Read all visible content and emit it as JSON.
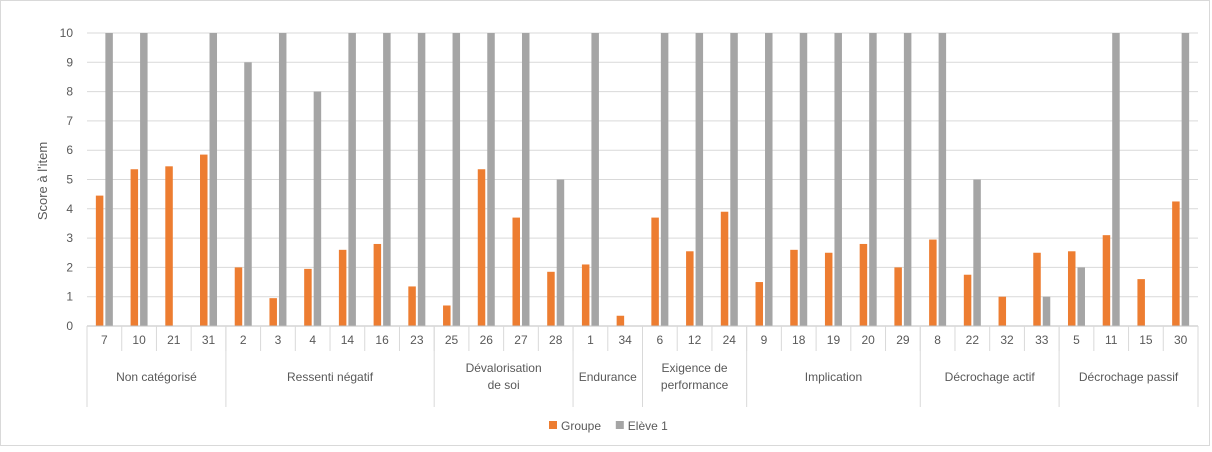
{
  "chart_data": {
    "type": "bar",
    "title": "",
    "xlabel": "",
    "ylabel": "Score à l'item",
    "ylim": [
      0,
      10
    ],
    "yticks": [
      0,
      1,
      2,
      3,
      4,
      5,
      6,
      7,
      8,
      9,
      10
    ],
    "grid": true,
    "legend_position": "bottom",
    "groups": [
      {
        "label": "Non catégorisé",
        "items": [
          "7",
          "10",
          "21",
          "31"
        ]
      },
      {
        "label": "Ressenti négatif",
        "items": [
          "2",
          "3",
          "4",
          "14",
          "16",
          "23"
        ]
      },
      {
        "label": "Dévalorisation de soi",
        "items": [
          "25",
          "26",
          "27",
          "28"
        ]
      },
      {
        "label": "Endurance",
        "items": [
          "1",
          "34"
        ]
      },
      {
        "label": "Exigence de performance",
        "items": [
          "6",
          "12",
          "24"
        ]
      },
      {
        "label": "Implication",
        "items": [
          "9",
          "18",
          "19",
          "20",
          "29"
        ]
      },
      {
        "label": "Décrochage actif",
        "items": [
          "8",
          "22",
          "32",
          "33"
        ]
      },
      {
        "label": "Décrochage passif",
        "items": [
          "5",
          "11",
          "15",
          "30"
        ]
      }
    ],
    "categories": [
      "7",
      "10",
      "21",
      "31",
      "2",
      "3",
      "4",
      "14",
      "16",
      "23",
      "25",
      "26",
      "27",
      "28",
      "1",
      "34",
      "6",
      "12",
      "24",
      "9",
      "18",
      "19",
      "20",
      "29",
      "8",
      "22",
      "32",
      "33",
      "5",
      "11",
      "15",
      "30"
    ],
    "series": [
      {
        "name": "Groupe",
        "color": "#ED7D31",
        "values": [
          4.45,
          5.35,
          5.45,
          5.85,
          2.0,
          0.95,
          1.95,
          2.6,
          2.8,
          1.35,
          0.7,
          5.35,
          3.7,
          1.85,
          2.1,
          0.35,
          3.7,
          2.55,
          3.9,
          1.5,
          2.6,
          2.5,
          2.8,
          2.0,
          2.95,
          1.75,
          1.0,
          2.5,
          2.55,
          3.1,
          1.6,
          4.25
        ]
      },
      {
        "name": "Elève 1",
        "color": "#A5A5A5",
        "values": [
          10,
          10,
          0,
          10,
          9,
          10,
          8,
          10,
          10,
          10,
          10,
          10,
          10,
          5,
          10,
          0,
          10,
          10,
          10,
          10,
          10,
          10,
          10,
          10,
          10,
          5,
          0,
          1,
          2,
          10,
          0,
          10
        ]
      }
    ]
  }
}
